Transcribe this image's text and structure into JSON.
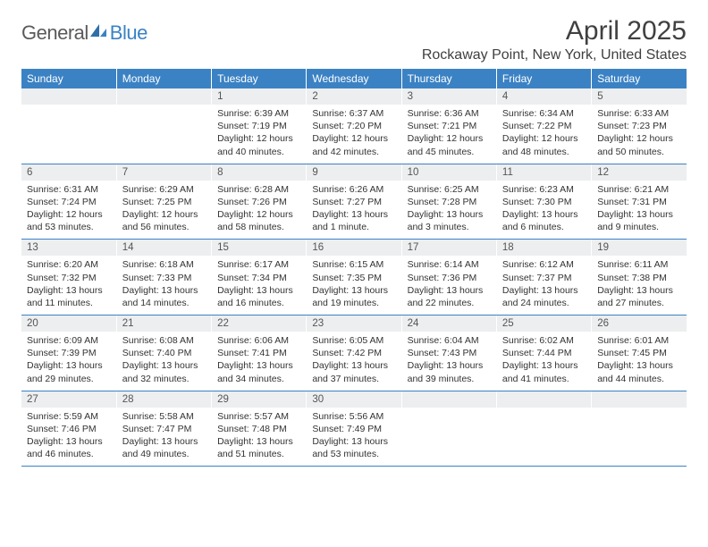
{
  "brand": {
    "part1": "General",
    "part2": "Blue"
  },
  "title": "April 2025",
  "location": "Rockaway Point, New York, United States",
  "colors": {
    "header_bg": "#3b82c4",
    "header_text": "#ffffff",
    "daynum_bg": "#eceeef",
    "border": "#3b82c4",
    "text": "#333333"
  },
  "day_headers": [
    "Sunday",
    "Monday",
    "Tuesday",
    "Wednesday",
    "Thursday",
    "Friday",
    "Saturday"
  ],
  "weeks": [
    {
      "nums": [
        "",
        "",
        "1",
        "2",
        "3",
        "4",
        "5"
      ],
      "cells": [
        null,
        null,
        {
          "sr": "Sunrise: 6:39 AM",
          "ss": "Sunset: 7:19 PM",
          "dl1": "Daylight: 12 hours",
          "dl2": "and 40 minutes."
        },
        {
          "sr": "Sunrise: 6:37 AM",
          "ss": "Sunset: 7:20 PM",
          "dl1": "Daylight: 12 hours",
          "dl2": "and 42 minutes."
        },
        {
          "sr": "Sunrise: 6:36 AM",
          "ss": "Sunset: 7:21 PM",
          "dl1": "Daylight: 12 hours",
          "dl2": "and 45 minutes."
        },
        {
          "sr": "Sunrise: 6:34 AM",
          "ss": "Sunset: 7:22 PM",
          "dl1": "Daylight: 12 hours",
          "dl2": "and 48 minutes."
        },
        {
          "sr": "Sunrise: 6:33 AM",
          "ss": "Sunset: 7:23 PM",
          "dl1": "Daylight: 12 hours",
          "dl2": "and 50 minutes."
        }
      ]
    },
    {
      "nums": [
        "6",
        "7",
        "8",
        "9",
        "10",
        "11",
        "12"
      ],
      "cells": [
        {
          "sr": "Sunrise: 6:31 AM",
          "ss": "Sunset: 7:24 PM",
          "dl1": "Daylight: 12 hours",
          "dl2": "and 53 minutes."
        },
        {
          "sr": "Sunrise: 6:29 AM",
          "ss": "Sunset: 7:25 PM",
          "dl1": "Daylight: 12 hours",
          "dl2": "and 56 minutes."
        },
        {
          "sr": "Sunrise: 6:28 AM",
          "ss": "Sunset: 7:26 PM",
          "dl1": "Daylight: 12 hours",
          "dl2": "and 58 minutes."
        },
        {
          "sr": "Sunrise: 6:26 AM",
          "ss": "Sunset: 7:27 PM",
          "dl1": "Daylight: 13 hours",
          "dl2": "and 1 minute."
        },
        {
          "sr": "Sunrise: 6:25 AM",
          "ss": "Sunset: 7:28 PM",
          "dl1": "Daylight: 13 hours",
          "dl2": "and 3 minutes."
        },
        {
          "sr": "Sunrise: 6:23 AM",
          "ss": "Sunset: 7:30 PM",
          "dl1": "Daylight: 13 hours",
          "dl2": "and 6 minutes."
        },
        {
          "sr": "Sunrise: 6:21 AM",
          "ss": "Sunset: 7:31 PM",
          "dl1": "Daylight: 13 hours",
          "dl2": "and 9 minutes."
        }
      ]
    },
    {
      "nums": [
        "13",
        "14",
        "15",
        "16",
        "17",
        "18",
        "19"
      ],
      "cells": [
        {
          "sr": "Sunrise: 6:20 AM",
          "ss": "Sunset: 7:32 PM",
          "dl1": "Daylight: 13 hours",
          "dl2": "and 11 minutes."
        },
        {
          "sr": "Sunrise: 6:18 AM",
          "ss": "Sunset: 7:33 PM",
          "dl1": "Daylight: 13 hours",
          "dl2": "and 14 minutes."
        },
        {
          "sr": "Sunrise: 6:17 AM",
          "ss": "Sunset: 7:34 PM",
          "dl1": "Daylight: 13 hours",
          "dl2": "and 16 minutes."
        },
        {
          "sr": "Sunrise: 6:15 AM",
          "ss": "Sunset: 7:35 PM",
          "dl1": "Daylight: 13 hours",
          "dl2": "and 19 minutes."
        },
        {
          "sr": "Sunrise: 6:14 AM",
          "ss": "Sunset: 7:36 PM",
          "dl1": "Daylight: 13 hours",
          "dl2": "and 22 minutes."
        },
        {
          "sr": "Sunrise: 6:12 AM",
          "ss": "Sunset: 7:37 PM",
          "dl1": "Daylight: 13 hours",
          "dl2": "and 24 minutes."
        },
        {
          "sr": "Sunrise: 6:11 AM",
          "ss": "Sunset: 7:38 PM",
          "dl1": "Daylight: 13 hours",
          "dl2": "and 27 minutes."
        }
      ]
    },
    {
      "nums": [
        "20",
        "21",
        "22",
        "23",
        "24",
        "25",
        "26"
      ],
      "cells": [
        {
          "sr": "Sunrise: 6:09 AM",
          "ss": "Sunset: 7:39 PM",
          "dl1": "Daylight: 13 hours",
          "dl2": "and 29 minutes."
        },
        {
          "sr": "Sunrise: 6:08 AM",
          "ss": "Sunset: 7:40 PM",
          "dl1": "Daylight: 13 hours",
          "dl2": "and 32 minutes."
        },
        {
          "sr": "Sunrise: 6:06 AM",
          "ss": "Sunset: 7:41 PM",
          "dl1": "Daylight: 13 hours",
          "dl2": "and 34 minutes."
        },
        {
          "sr": "Sunrise: 6:05 AM",
          "ss": "Sunset: 7:42 PM",
          "dl1": "Daylight: 13 hours",
          "dl2": "and 37 minutes."
        },
        {
          "sr": "Sunrise: 6:04 AM",
          "ss": "Sunset: 7:43 PM",
          "dl1": "Daylight: 13 hours",
          "dl2": "and 39 minutes."
        },
        {
          "sr": "Sunrise: 6:02 AM",
          "ss": "Sunset: 7:44 PM",
          "dl1": "Daylight: 13 hours",
          "dl2": "and 41 minutes."
        },
        {
          "sr": "Sunrise: 6:01 AM",
          "ss": "Sunset: 7:45 PM",
          "dl1": "Daylight: 13 hours",
          "dl2": "and 44 minutes."
        }
      ]
    },
    {
      "nums": [
        "27",
        "28",
        "29",
        "30",
        "",
        "",
        ""
      ],
      "cells": [
        {
          "sr": "Sunrise: 5:59 AM",
          "ss": "Sunset: 7:46 PM",
          "dl1": "Daylight: 13 hours",
          "dl2": "and 46 minutes."
        },
        {
          "sr": "Sunrise: 5:58 AM",
          "ss": "Sunset: 7:47 PM",
          "dl1": "Daylight: 13 hours",
          "dl2": "and 49 minutes."
        },
        {
          "sr": "Sunrise: 5:57 AM",
          "ss": "Sunset: 7:48 PM",
          "dl1": "Daylight: 13 hours",
          "dl2": "and 51 minutes."
        },
        {
          "sr": "Sunrise: 5:56 AM",
          "ss": "Sunset: 7:49 PM",
          "dl1": "Daylight: 13 hours",
          "dl2": "and 53 minutes."
        },
        null,
        null,
        null
      ]
    }
  ]
}
